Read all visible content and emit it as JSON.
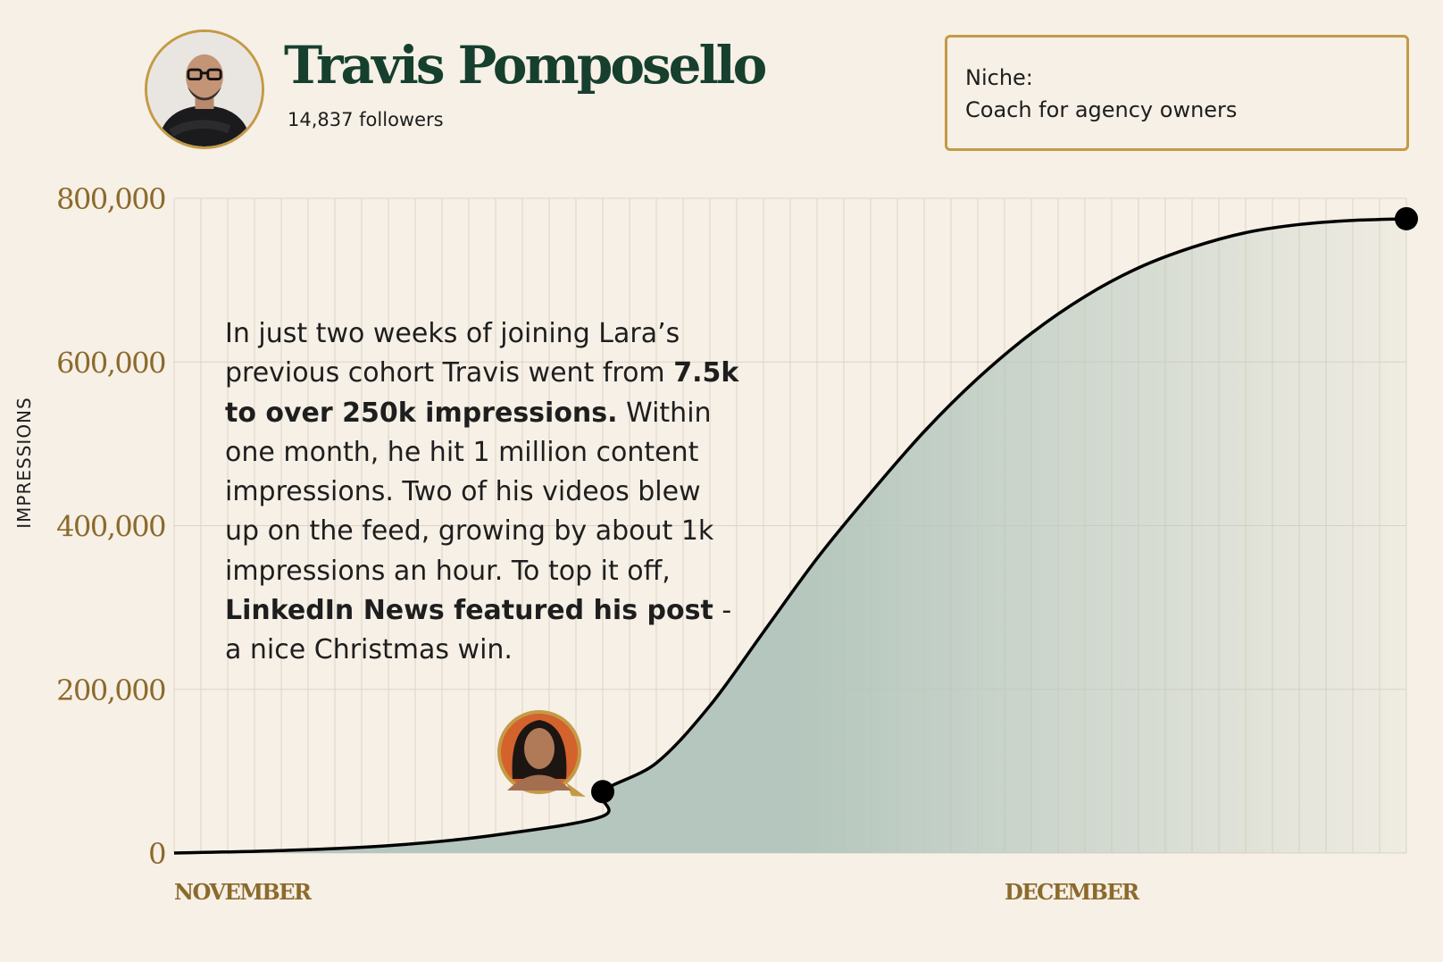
{
  "profile": {
    "name": "Travis Pomposello",
    "followers": "14,837 followers"
  },
  "niche": {
    "label": "Niche:",
    "value": "Coach for agency owners"
  },
  "story": {
    "p1": "In just two weeks of joining Lara’s previous cohort Travis went from ",
    "b1": "7.5k to over 250k impressions.",
    "p2": " Within one month, he hit 1 million content impressions. Two of his videos blew up on the feed, growing by about 1k impressions an hour. To top it off, ",
    "b2": "LinkedIn News featured his post",
    "p3": " - a nice Christmas win."
  },
  "colors": {
    "background": "#f6f0e6",
    "accent_gold": "#c49a45",
    "tick_text": "#8c6a2c",
    "name_green": "#163f2e",
    "area_fill": "#b4c6bd",
    "line": "#000000"
  },
  "chart_data": {
    "type": "area",
    "title": "",
    "xlabel": "",
    "ylabel": "IMPRESSIONS",
    "x_tick_labels": [
      "NOVEMBER",
      "DECEMBER"
    ],
    "y_ticks": [
      0,
      200000,
      400000,
      600000,
      800000
    ],
    "y_tick_labels": [
      "0",
      "200,000",
      "400,000",
      "600,000",
      "800,000"
    ],
    "ylim": [
      0,
      800000
    ],
    "xlim_days": [
      0,
      46
    ],
    "grid": true,
    "series": [
      {
        "points": [
          {
            "day": 0,
            "value": 0
          },
          {
            "day": 4,
            "value": 3000
          },
          {
            "day": 8,
            "value": 9000
          },
          {
            "day": 12,
            "value": 22000
          },
          {
            "day": 16,
            "value": 45000
          },
          {
            "day": 16,
            "value": 75000
          },
          {
            "day": 18,
            "value": 110000
          },
          {
            "day": 20,
            "value": 180000
          },
          {
            "day": 22,
            "value": 270000
          },
          {
            "day": 24,
            "value": 360000
          },
          {
            "day": 26,
            "value": 440000
          },
          {
            "day": 28,
            "value": 515000
          },
          {
            "day": 30,
            "value": 580000
          },
          {
            "day": 32,
            "value": 635000
          },
          {
            "day": 34,
            "value": 680000
          },
          {
            "day": 36,
            "value": 715000
          },
          {
            "day": 38,
            "value": 740000
          },
          {
            "day": 40,
            "value": 758000
          },
          {
            "day": 42,
            "value": 768000
          },
          {
            "day": 44,
            "value": 773000
          },
          {
            "day": 46,
            "value": 775000
          }
        ],
        "markers": [
          {
            "day": 16,
            "value": 75000
          },
          {
            "day": 46,
            "value": 775000
          }
        ]
      }
    ]
  }
}
